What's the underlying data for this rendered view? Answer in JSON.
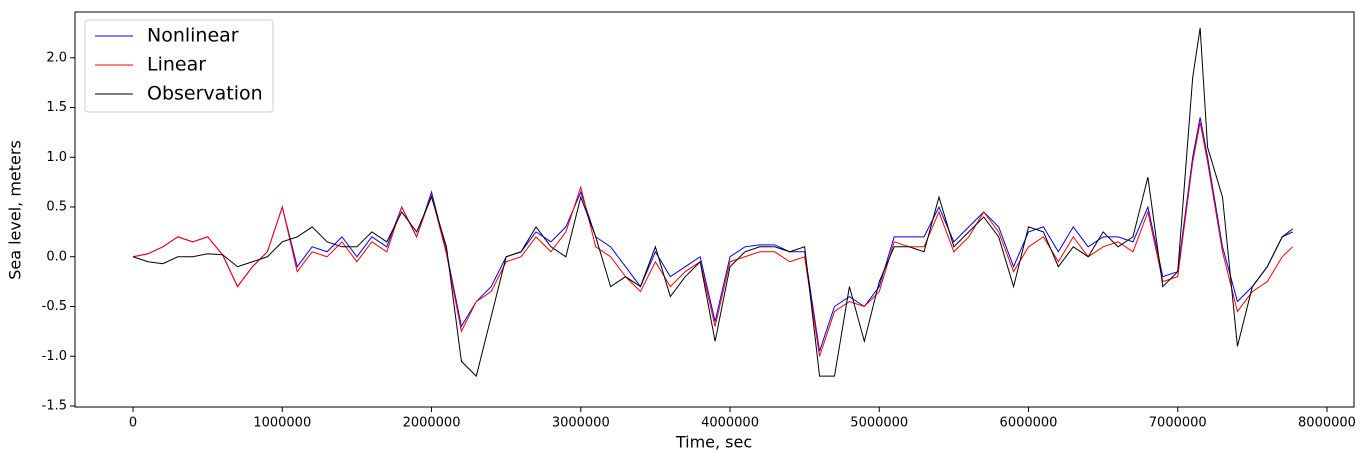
{
  "chart_data": {
    "type": "line",
    "xlabel": "Time, sec",
    "ylabel": "Sea level, meters",
    "x": [
      0,
      100000,
      200000,
      300000,
      400000,
      500000,
      600000,
      700000,
      800000,
      900000,
      1000000,
      1100000,
      1200000,
      1300000,
      1400000,
      1500000,
      1600000,
      1700000,
      1800000,
      1900000,
      2000000,
      2100000,
      2200000,
      2300000,
      2400000,
      2500000,
      2600000,
      2700000,
      2800000,
      2900000,
      3000000,
      3100000,
      3200000,
      3300000,
      3400000,
      3500000,
      3600000,
      3700000,
      3800000,
      3900000,
      4000000,
      4100000,
      4200000,
      4300000,
      4400000,
      4500000,
      4600000,
      4700000,
      4800000,
      4900000,
      5000000,
      5100000,
      5200000,
      5300000,
      5400000,
      5500000,
      5600000,
      5700000,
      5800000,
      5900000,
      6000000,
      6100000,
      6200000,
      6300000,
      6400000,
      6500000,
      6600000,
      6700000,
      6800000,
      6900000,
      7000000,
      7100000,
      7150000,
      7200000,
      7300000,
      7400000,
      7500000,
      7600000,
      7700000,
      7770000
    ],
    "series": [
      {
        "name": "Nonlinear",
        "color": "#0000ff",
        "values": [
          0,
          0.03,
          0.1,
          0.2,
          0.15,
          0.2,
          0.02,
          -0.3,
          -0.1,
          0.05,
          0.5,
          -0.1,
          0.1,
          0.05,
          0.2,
          0,
          0.2,
          0.1,
          0.5,
          0.2,
          0.65,
          0.05,
          -0.7,
          -0.45,
          -0.3,
          0,
          0.05,
          0.25,
          0.15,
          0.3,
          0.65,
          0.2,
          0.1,
          -0.1,
          -0.3,
          0.05,
          -0.2,
          -0.1,
          0,
          -0.65,
          0,
          0.1,
          0.12,
          0.12,
          0.05,
          0.05,
          -0.95,
          -0.5,
          -0.4,
          -0.5,
          -0.3,
          0.2,
          0.2,
          0.2,
          0.5,
          0.15,
          0.3,
          0.45,
          0.3,
          -0.1,
          0.25,
          0.3,
          0.05,
          0.3,
          0.1,
          0.2,
          0.2,
          0.15,
          0.5,
          -0.2,
          -0.15,
          1.0,
          1.4,
          1.0,
          0.1,
          -0.45,
          -0.3,
          -0.1,
          0.2,
          0.25
        ]
      },
      {
        "name": "Linear",
        "color": "#ff0000",
        "values": [
          0,
          0.03,
          0.1,
          0.2,
          0.15,
          0.2,
          0.02,
          -0.3,
          -0.1,
          0.05,
          0.5,
          -0.15,
          0.05,
          0,
          0.15,
          -0.05,
          0.15,
          0.05,
          0.5,
          0.2,
          0.62,
          0.03,
          -0.75,
          -0.45,
          -0.35,
          -0.05,
          0,
          0.2,
          0.05,
          0.25,
          0.7,
          0.1,
          0,
          -0.2,
          -0.35,
          -0.05,
          -0.3,
          -0.15,
          -0.05,
          -0.7,
          -0.05,
          0,
          0.05,
          0.05,
          -0.05,
          0,
          -1.0,
          -0.55,
          -0.45,
          -0.5,
          -0.35,
          0.15,
          0.1,
          0.1,
          0.45,
          0.05,
          0.2,
          0.45,
          0.25,
          -0.15,
          0.1,
          0.2,
          -0.05,
          0.2,
          0,
          0.1,
          0.15,
          0.05,
          0.45,
          -0.25,
          -0.2,
          0.95,
          1.35,
          0.95,
          0.05,
          -0.55,
          -0.35,
          -0.25,
          0,
          0.1
        ]
      },
      {
        "name": "Observation",
        "color": "#000000",
        "values": [
          0,
          -0.05,
          -0.07,
          0,
          0,
          0.03,
          0.02,
          -0.1,
          -0.05,
          0,
          0.15,
          0.2,
          0.3,
          0.15,
          0.1,
          0.1,
          0.25,
          0.15,
          0.45,
          0.25,
          0.6,
          0.1,
          -1.05,
          -1.2,
          -0.6,
          0,
          0.05,
          0.3,
          0.1,
          0,
          0.6,
          0.2,
          -0.3,
          -0.2,
          -0.3,
          0.1,
          -0.4,
          -0.2,
          -0.05,
          -0.85,
          -0.1,
          0.05,
          0.1,
          0.1,
          0.05,
          0.1,
          -1.2,
          -1.2,
          -0.3,
          -0.85,
          -0.25,
          0.1,
          0.1,
          0.05,
          0.6,
          0.1,
          0.25,
          0.4,
          0.2,
          -0.3,
          0.3,
          0.25,
          -0.1,
          0.1,
          0,
          0.25,
          0.1,
          0.2,
          0.8,
          -0.3,
          -0.15,
          1.8,
          2.3,
          1.1,
          0.6,
          -0.9,
          -0.3,
          -0.1,
          0.2,
          0.28
        ]
      }
    ],
    "xlim": [
      -389000,
      8181000
    ],
    "ylim": [
      -1.51,
      2.46
    ],
    "xticks": [
      0,
      1000000,
      2000000,
      3000000,
      4000000,
      5000000,
      6000000,
      7000000,
      8000000
    ],
    "yticks": [
      -1.5,
      {
        "value": -1.0,
        "label": "-1.0"
      },
      -0.5,
      {
        "value": 0.0,
        "label": "0.0"
      },
      0.5,
      {
        "value": 1.0,
        "label": "1.0"
      },
      1.5,
      {
        "value": 2.0,
        "label": "2.0"
      }
    ],
    "legend": "upper left"
  }
}
